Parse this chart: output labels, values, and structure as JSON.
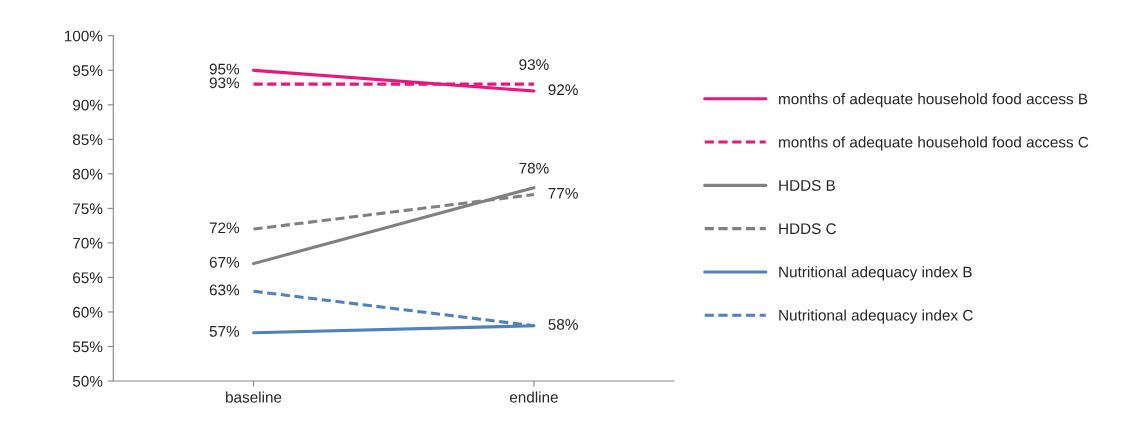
{
  "chart_data": {
    "type": "line",
    "categories": [
      "baseline",
      "endline"
    ],
    "ylim": [
      50,
      100
    ],
    "yticks": [
      {
        "value": 50,
        "label": "50%"
      },
      {
        "value": 55,
        "label": "55%"
      },
      {
        "value": 60,
        "label": "60%"
      },
      {
        "value": 65,
        "label": "65%"
      },
      {
        "value": 70,
        "label": "70%"
      },
      {
        "value": 75,
        "label": "75%"
      },
      {
        "value": 80,
        "label": "80%"
      },
      {
        "value": 85,
        "label": "85%"
      },
      {
        "value": 90,
        "label": "90%"
      },
      {
        "value": 95,
        "label": "95%"
      },
      {
        "value": 100,
        "label": "100%"
      }
    ],
    "grid": false,
    "legend": "right",
    "marker": "none",
    "series": [
      {
        "name": "months of adequate household food access B",
        "color": "#e8177d",
        "line_style": "solid",
        "values": [
          95,
          92
        ],
        "value_labels": [
          "95%",
          "92%"
        ]
      },
      {
        "name": "months of adequate household food access C",
        "color": "#e8177d",
        "line_style": "dashed",
        "values": [
          93,
          93
        ],
        "value_labels": [
          "93%",
          "93%"
        ]
      },
      {
        "name": "HDDS B",
        "color": "#808080",
        "line_style": "solid",
        "values": [
          67,
          78
        ],
        "value_labels": [
          "67%",
          "78%"
        ]
      },
      {
        "name": "HDDS C",
        "color": "#808080",
        "line_style": "dashed",
        "values": [
          72,
          77
        ],
        "value_labels": [
          "72%",
          "77%"
        ]
      },
      {
        "name": "Nutritional adequacy index B",
        "color": "#4f81bd",
        "line_style": "solid",
        "values": [
          57,
          58
        ],
        "value_labels": [
          "57%",
          "58%"
        ]
      },
      {
        "name": "Nutritional adequacy index C",
        "color": "#4f81bd",
        "line_style": "dashed",
        "values": [
          63,
          58
        ],
        "value_labels": [
          "63%",
          null
        ]
      }
    ]
  }
}
